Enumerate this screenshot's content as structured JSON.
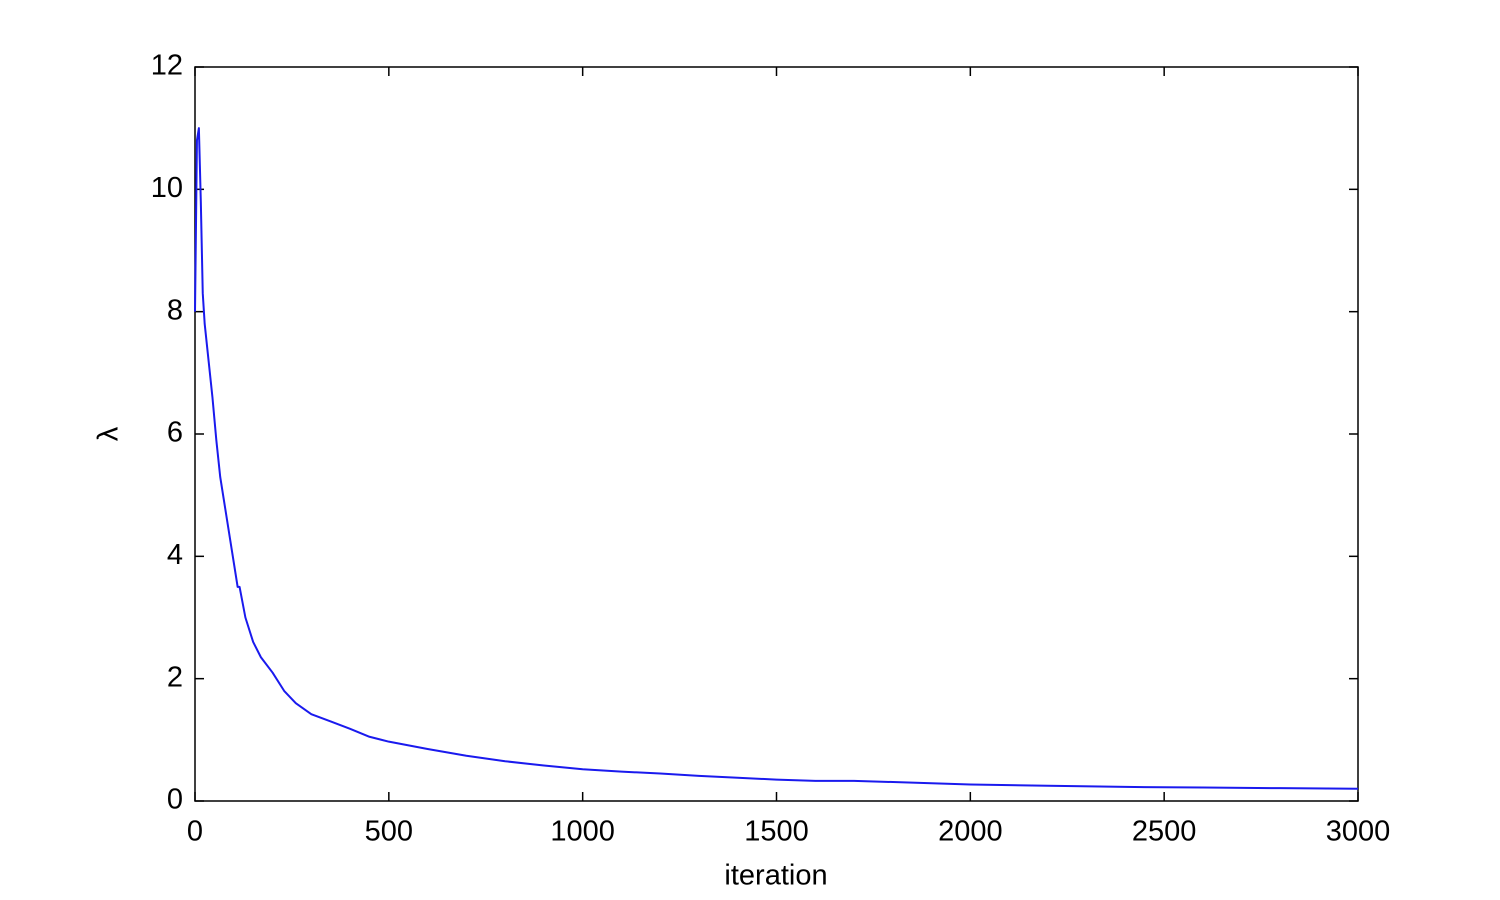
{
  "chart_data": {
    "type": "line",
    "x_label": "iteration",
    "y_label": "λ",
    "x": [
      0,
      5,
      10,
      15,
      20,
      25,
      35,
      45,
      55,
      65,
      75,
      90,
      100,
      110,
      115,
      130,
      150,
      170,
      200,
      230,
      260,
      300,
      350,
      400,
      450,
      500,
      600,
      700,
      800,
      900,
      1000,
      1100,
      1200,
      1300,
      1400,
      1500,
      1600,
      1700,
      1800,
      1900,
      2000,
      2200,
      2400,
      2600,
      2800,
      3000
    ],
    "values": [
      8.0,
      10.8,
      11.0,
      9.8,
      8.3,
      7.8,
      7.2,
      6.6,
      5.9,
      5.3,
      4.9,
      4.3,
      3.9,
      3.5,
      3.5,
      3.0,
      2.6,
      2.35,
      2.1,
      1.8,
      1.6,
      1.42,
      1.3,
      1.18,
      1.05,
      0.97,
      0.85,
      0.74,
      0.65,
      0.58,
      0.52,
      0.48,
      0.45,
      0.41,
      0.38,
      0.35,
      0.33,
      0.33,
      0.31,
      0.29,
      0.27,
      0.25,
      0.23,
      0.22,
      0.21,
      0.2
    ],
    "color": "#1a1aee",
    "xlim": [
      0,
      3000
    ],
    "xticks": [
      0,
      500,
      1000,
      1500,
      2000,
      2500,
      3000
    ],
    "ylim": [
      0,
      12
    ],
    "yticks": [
      0,
      2,
      4,
      6,
      8,
      10,
      12
    ]
  }
}
